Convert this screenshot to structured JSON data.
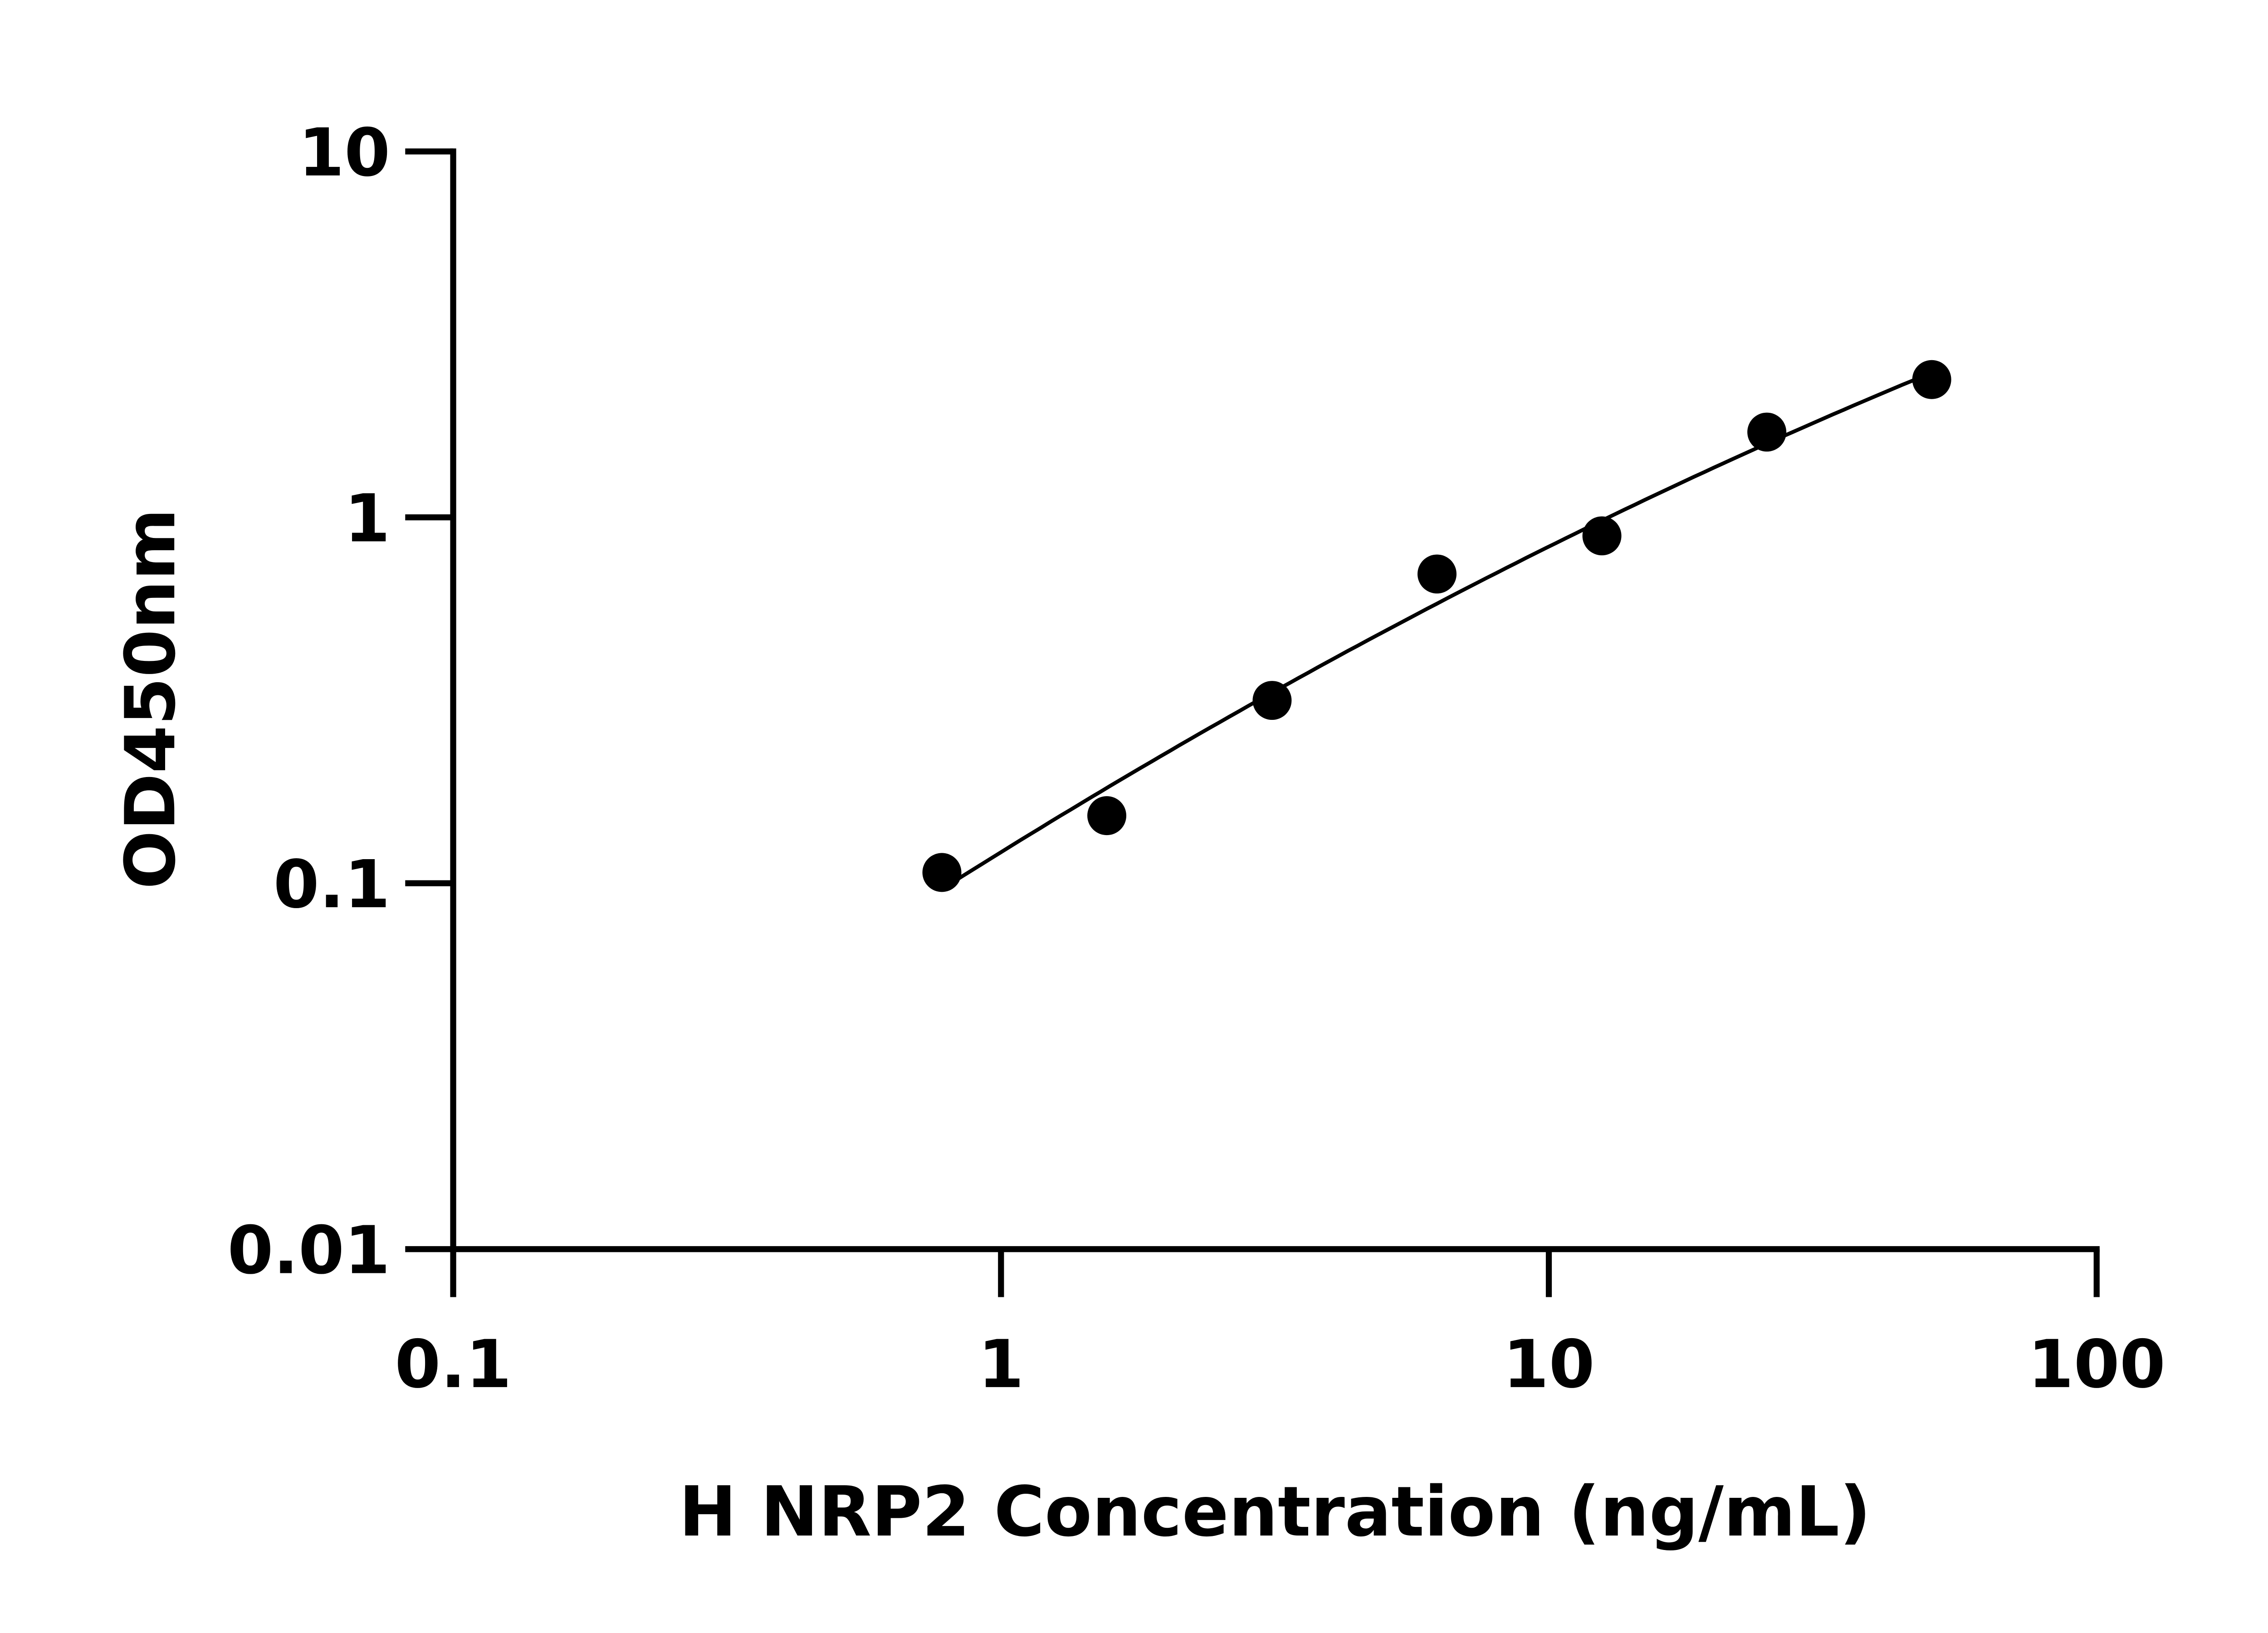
{
  "chart_data": {
    "type": "scatter",
    "title": "",
    "xlabel": "H NRP2 Concentration (ng/mL)",
    "ylabel": "OD450nm",
    "x_scale": "log",
    "y_scale": "log",
    "xlim": [
      0.1,
      100
    ],
    "ylim": [
      0.01,
      10
    ],
    "x_ticks": [
      "0.1",
      "1",
      "10",
      "100"
    ],
    "y_ticks": [
      "0.01",
      "0.1",
      "1",
      "10"
    ],
    "grid": false,
    "fit_curve": true,
    "marker_color": "#000000",
    "x": [
      0.78,
      1.56,
      3.125,
      6.25,
      12.5,
      25,
      50
    ],
    "y": [
      0.107,
      0.153,
      0.316,
      0.7,
      0.89,
      1.71,
      2.38
    ]
  }
}
